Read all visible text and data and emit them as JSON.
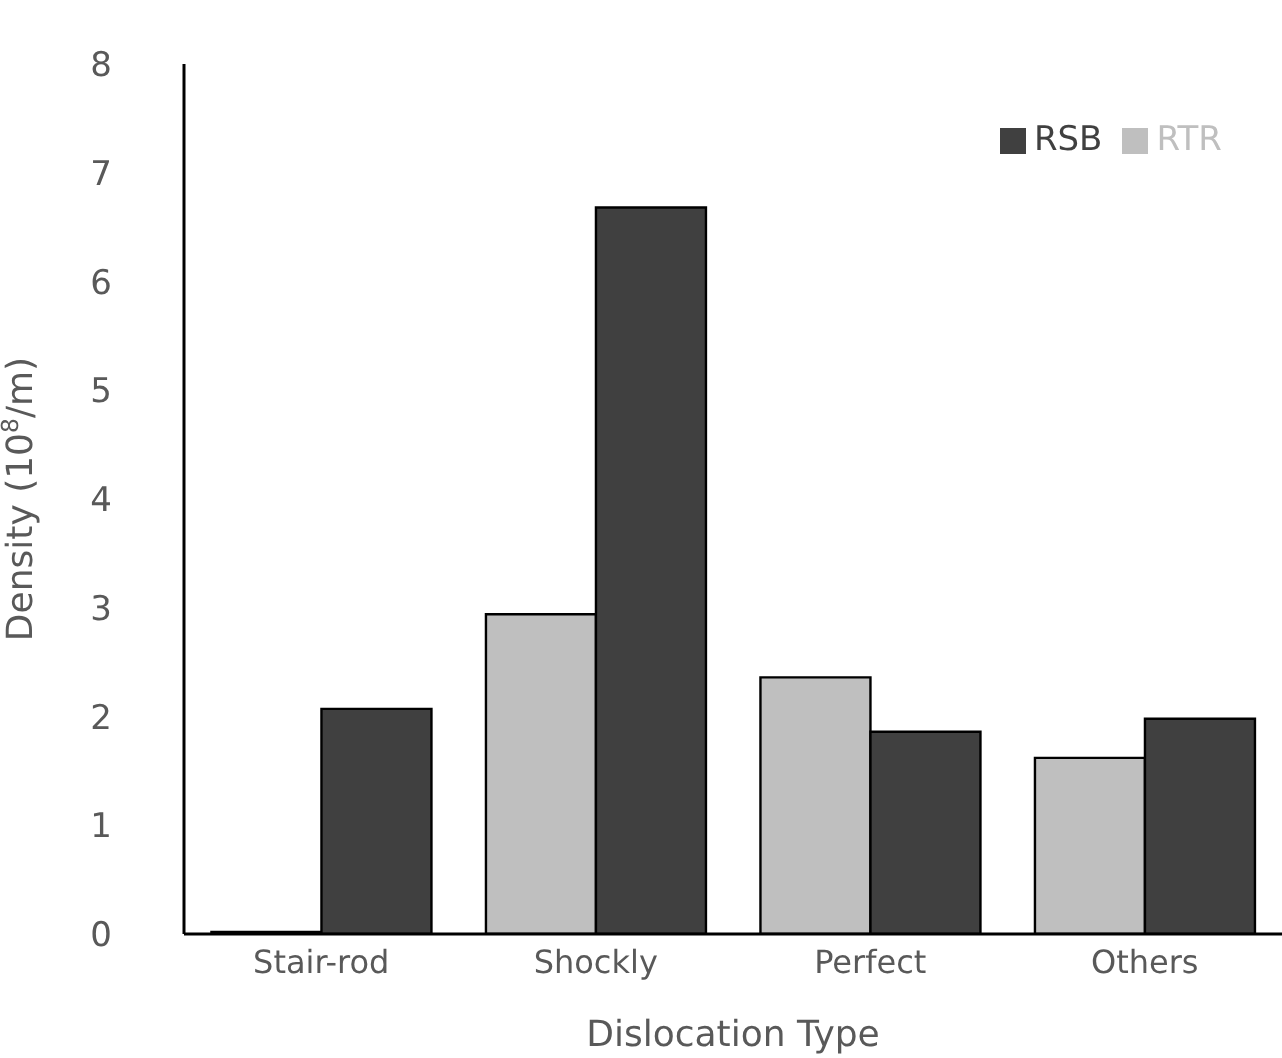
{
  "chart_data": {
    "type": "bar",
    "xlabel": "Dislocation Type",
    "ylabel": "Density (10$^{8}$/m)",
    "categories": [
      "Stair-rod",
      "Shockly",
      "Perfect",
      "Others"
    ],
    "series": [
      {
        "name": "RTR",
        "color": "#bfbfbf",
        "values": [
          0.02,
          2.94,
          2.36,
          1.62
        ]
      },
      {
        "name": "RSB",
        "color": "#404040",
        "values": [
          2.07,
          6.68,
          1.86,
          1.98
        ]
      }
    ],
    "ylim": [
      0,
      8
    ],
    "yticks": [
      0,
      1,
      2,
      3,
      4,
      5,
      6,
      7,
      8
    ],
    "grid": false,
    "legend": "top right"
  }
}
